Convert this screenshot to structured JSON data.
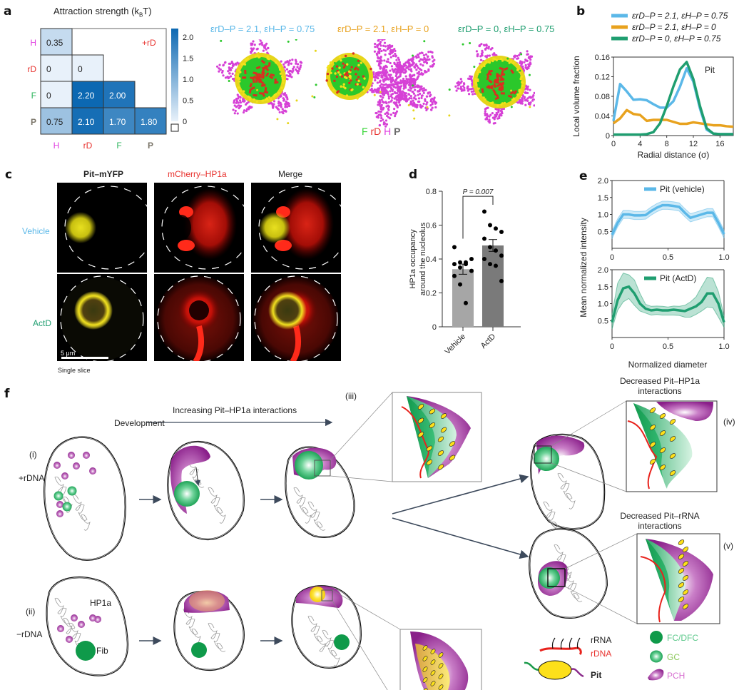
{
  "panels": {
    "a": {
      "label": "a",
      "heatmap_title": "Attraction strength (kBT)",
      "heatmap_title_main": "Attraction strength (k",
      "heatmap_title_sub": "B",
      "heatmap_title_end": "T)",
      "corner_label": "+rD",
      "row_labels": [
        "H",
        "rD",
        "F",
        "P"
      ],
      "col_labels": [
        "H",
        "rD",
        "F",
        "P"
      ],
      "label_colors": {
        "H": "#e040e0",
        "rD": "#e8322e",
        "F": "#2db55d",
        "P": "#7a7468"
      },
      "cells": [
        [
          "0.35",
          null,
          null,
          null
        ],
        [
          "0",
          "0",
          null,
          null
        ],
        [
          "0",
          "2.20",
          "2.00",
          null
        ],
        [
          "0.75",
          "2.10",
          "1.70",
          "1.80"
        ]
      ],
      "colorbar_ticks": [
        "2.0",
        "1.5",
        "1.0",
        "0.5",
        "0"
      ],
      "sim_titles": [
        {
          "text": "εrD–P = 2.1, εH–P = 0.75",
          "color": "#5bb8e8"
        },
        {
          "text": "εrD–P = 2.1, εH–P = 0",
          "color": "#e8a21e"
        },
        {
          "text": "εrD–P = 0, εH–P = 0.75",
          "color": "#1f9e70"
        }
      ],
      "particle_legend": [
        {
          "text": "F",
          "color": "#35d535"
        },
        {
          "text": "rD",
          "color": "#e8322e"
        },
        {
          "text": "H",
          "color": "#e040e0"
        },
        {
          "text": "P",
          "color": "#6b6b6b"
        }
      ]
    },
    "b": {
      "label": "b"
    },
    "c": {
      "label": "c",
      "col_titles": [
        {
          "text": "Pit–mYFP",
          "color": "#222222"
        },
        {
          "text": "mCherry–HP1a",
          "color": "#e8322e"
        },
        {
          "text": "Merge",
          "color": "#222222"
        }
      ],
      "row_titles": [
        {
          "text": "Vehicle",
          "color": "#5bb8e8"
        },
        {
          "text": "ActD",
          "color": "#1f9e70"
        }
      ],
      "scale_bar": "5 μm",
      "footnote": "Single slice"
    },
    "d": {
      "label": "d"
    },
    "e": {
      "label": "e"
    },
    "f": {
      "label": "f",
      "development": "Development",
      "increasing": "Increasing Pit–HP1a interactions",
      "row_i": "(i)",
      "row_i_cond": "+rDNA",
      "row_ii": "(ii)",
      "row_ii_cond": "−rDNA",
      "iii": "(iii)",
      "iv": "(iv)",
      "v": "(v)",
      "iv_title_1": "Decreased Pit–HP1a",
      "iv_title_2": "interactions",
      "v_title_1": "Decreased Pit–rRNA",
      "v_title_2": "interactions",
      "hp1a_label": "HP1a",
      "fib_label": "Fib",
      "legend": {
        "rrna": "rRNA",
        "rdna": "rDNA",
        "pit": "Pit",
        "fc": "FC/DFC",
        "gc": "GC",
        "pch": "PCH"
      }
    }
  },
  "chart_data": [
    {
      "id": "b",
      "type": "line",
      "title": "Pit",
      "xlabel": "Radial distance (σ)",
      "ylabel": "Local volume fraction",
      "xlim": [
        0,
        18
      ],
      "ylim": [
        0,
        0.16
      ],
      "xticks": [
        "0",
        "4",
        "8",
        "12",
        "16"
      ],
      "yticks": [
        "0",
        "0.04",
        "0.08",
        "0.12",
        "0.16"
      ],
      "legend_position": "top",
      "x": [
        0,
        1,
        2,
        3,
        4,
        5,
        6,
        7,
        8,
        9,
        10,
        11,
        12,
        13,
        14,
        15,
        16,
        17,
        18
      ],
      "series": [
        {
          "name": "εrD–P = 2.1, εH–P = 0.75",
          "color": "#5bb8e8",
          "values": [
            0.03,
            0.105,
            0.09,
            0.073,
            0.074,
            0.072,
            0.064,
            0.057,
            0.057,
            0.07,
            0.1,
            0.137,
            0.11,
            0.055,
            0.012,
            0.004,
            0.003,
            0.003,
            0.003
          ]
        },
        {
          "name": "εrD–P = 2.1, εH–P = 0",
          "color": "#e8a21e",
          "values": [
            0.025,
            0.035,
            0.052,
            0.044,
            0.042,
            0.03,
            0.032,
            0.032,
            0.032,
            0.028,
            0.024,
            0.024,
            0.027,
            0.025,
            0.023,
            0.021,
            0.021,
            0.019,
            0.018
          ]
        },
        {
          "name": "εrD–P = 0, εH–P = 0.75",
          "color": "#1f9e70",
          "values": [
            0.002,
            0.002,
            0.002,
            0.002,
            0.002,
            0.003,
            0.007,
            0.025,
            0.06,
            0.1,
            0.135,
            0.15,
            0.115,
            0.06,
            0.015,
            0.004,
            0.003,
            0.003,
            0.003
          ]
        }
      ]
    },
    {
      "id": "d",
      "type": "bar",
      "xlabel": "",
      "ylabel": "HP1a occupancy around the nucleolus",
      "ylim": [
        0,
        0.8
      ],
      "yticks": [
        "0",
        "0.2",
        "0.4",
        "0.6",
        "0.8"
      ],
      "categories": [
        "Vehicle",
        "ActD"
      ],
      "values": [
        0.34,
        0.48
      ],
      "sem": [
        0.03,
        0.035
      ],
      "colors": [
        "#a6a6a6",
        "#7a7a7a"
      ],
      "points": [
        [
          0.47,
          0.38,
          0.38,
          0.4,
          0.37,
          0.35,
          0.37,
          0.33,
          0.3,
          0.25,
          0.14
        ],
        [
          0.68,
          0.6,
          0.58,
          0.56,
          0.52,
          0.47,
          0.45,
          0.42,
          0.4,
          0.37,
          0.36,
          0.27
        ]
      ],
      "annotation": "P = 0.007"
    },
    {
      "id": "e-top",
      "type": "line",
      "series_name": "Pit (vehicle)",
      "color": "#5bb8e8",
      "xlim": [
        0,
        1.0
      ],
      "ylim": [
        0,
        2.0
      ],
      "xticks": [
        "0",
        "0.5",
        "1.0"
      ],
      "yticks": [
        "0.5",
        "1.0",
        "1.5",
        "2.0"
      ],
      "x": [
        0,
        0.05,
        0.1,
        0.15,
        0.2,
        0.25,
        0.3,
        0.35,
        0.4,
        0.45,
        0.5,
        0.55,
        0.6,
        0.65,
        0.7,
        0.75,
        0.8,
        0.85,
        0.9,
        0.95,
        1.0
      ],
      "mean": [
        0.4,
        0.75,
        1.0,
        1.0,
        0.97,
        0.97,
        0.98,
        1.1,
        1.2,
        1.27,
        1.27,
        1.25,
        1.22,
        1.05,
        0.9,
        0.95,
        1.0,
        1.05,
        1.05,
        0.75,
        0.42
      ],
      "band": 0.12
    },
    {
      "id": "e-bottom",
      "type": "line",
      "series_name": "Pit (ActD)",
      "color": "#1f9e70",
      "xlabel": "Normalized diameter",
      "ylabel": "Mean normalized intensity",
      "xlim": [
        0,
        1.0
      ],
      "ylim": [
        0,
        2.0
      ],
      "xticks": [
        "0",
        "0.5",
        "1.0"
      ],
      "yticks": [
        "0.5",
        "1.0",
        "1.5",
        "2.0"
      ],
      "x": [
        0,
        0.05,
        0.1,
        0.15,
        0.2,
        0.25,
        0.3,
        0.35,
        0.4,
        0.45,
        0.5,
        0.55,
        0.6,
        0.65,
        0.7,
        0.75,
        0.8,
        0.85,
        0.9,
        0.95,
        1.0
      ],
      "mean": [
        0.45,
        1.1,
        1.45,
        1.5,
        1.3,
        1.0,
        0.85,
        0.8,
        0.82,
        0.8,
        0.8,
        0.82,
        0.8,
        0.78,
        0.85,
        0.92,
        1.05,
        1.3,
        1.3,
        1.0,
        0.45
      ],
      "upper": [
        0.7,
        1.6,
        1.9,
        1.85,
        1.7,
        1.3,
        0.98,
        0.92,
        0.93,
        0.92,
        0.9,
        0.93,
        0.92,
        0.95,
        1.05,
        1.2,
        1.5,
        1.78,
        1.75,
        1.35,
        0.65
      ],
      "lower": [
        0.25,
        0.8,
        1.05,
        1.15,
        0.95,
        0.78,
        0.72,
        0.66,
        0.68,
        0.66,
        0.66,
        0.66,
        0.65,
        0.6,
        0.6,
        0.68,
        0.78,
        0.9,
        0.88,
        0.6,
        0.3
      ]
    }
  ]
}
